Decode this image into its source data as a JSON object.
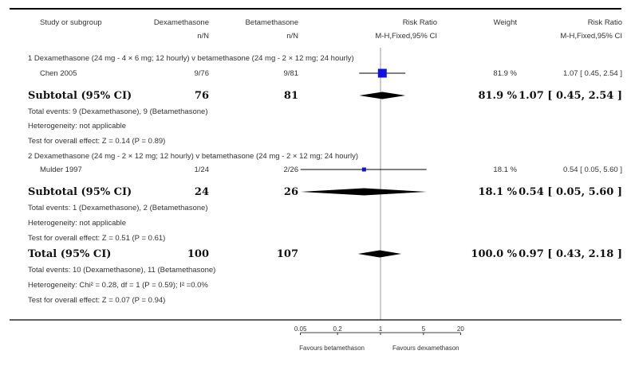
{
  "chart_data": {
    "type": "forest",
    "x_scale": "log",
    "x_ticks": [
      0.05,
      0.2,
      1,
      5,
      20
    ],
    "x_tick_labels": [
      "0.05",
      "0.2",
      "1",
      "5",
      "20"
    ],
    "favours_left": "Favours betamethason",
    "favours_right": "Favours dexamethason",
    "headers": {
      "study": "Study or subgroup",
      "exp": "Dexamethasone",
      "exp_sub": "n/N",
      "ctrl": "Betamethasone",
      "ctrl_sub": "n/N",
      "rr": "Risk Ratio",
      "rr_sub": "M-H,Fixed,95% CI",
      "weight": "Weight",
      "rr2": "Risk Ratio",
      "rr2_sub": "M-H,Fixed,95% CI"
    },
    "subgroups": [
      {
        "title": "1 Dexamethasone (24 mg - 4 × 6 mg; 12 hourly) v betamethasone (24 mg - 2 × 12 mg; 24 hourly)",
        "studies": [
          {
            "name": "Chen 2005",
            "exp": "9/76",
            "ctrl": "9/81",
            "rr": 1.07,
            "lo": 0.45,
            "hi": 2.54,
            "weight": "81.9 %",
            "ci_text": "1.07 [ 0.45, 2.54 ]"
          }
        ],
        "subtotal": {
          "label": "Subtotal (95% CI)",
          "exp": "76",
          "ctrl": "81",
          "rr": 1.07,
          "lo": 0.45,
          "hi": 2.54,
          "weight": "81.9 %",
          "ci_text": "1.07 [ 0.45, 2.54 ]"
        },
        "notes": [
          "Total events: 9 (Dexamethasone), 9 (Betamethasone)",
          "Heterogeneity: not applicable",
          "Test for overall effect: Z = 0.14 (P = 0.89)"
        ]
      },
      {
        "title": "2 Dexamethasone (24 mg - 2 × 12 mg; 12 hourly) v betamethasone (24 mg - 2 × 12 mg; 24 hourly)",
        "studies": [
          {
            "name": "Mulder 1997",
            "exp": "1/24",
            "ctrl": "2/26",
            "rr": 0.54,
            "lo": 0.05,
            "hi": 5.6,
            "weight": "18.1 %",
            "ci_text": "0.54 [ 0.05, 5.60 ]"
          }
        ],
        "subtotal": {
          "label": "Subtotal (95% CI)",
          "exp": "24",
          "ctrl": "26",
          "rr": 0.54,
          "lo": 0.05,
          "hi": 5.6,
          "weight": "18.1 %",
          "ci_text": "0.54 [ 0.05, 5.60 ]"
        },
        "notes": [
          "Total events: 1 (Dexamethasone), 2 (Betamethasone)",
          "Heterogeneity: not applicable",
          "Test for overall effect: Z = 0.51 (P = 0.61)"
        ]
      }
    ],
    "total": {
      "label": "Total (95% CI)",
      "exp": "100",
      "ctrl": "107",
      "rr": 0.97,
      "lo": 0.43,
      "hi": 2.18,
      "weight": "100.0 %",
      "ci_text": "0.97 [ 0.43, 2.18 ]"
    },
    "total_notes": [
      "Total events: 10 (Dexamethasone), 11 (Betamethasone)",
      "Heterogeneity: Chi² = 0.28, df = 1 (P = 0.59); I² =0.0%",
      "Test for overall effect: Z = 0.07 (P = 0.94)"
    ],
    "colors": {
      "square": "#1010e0",
      "diamond": "#000000",
      "line": "#000000",
      "null_line": "#999999"
    }
  }
}
